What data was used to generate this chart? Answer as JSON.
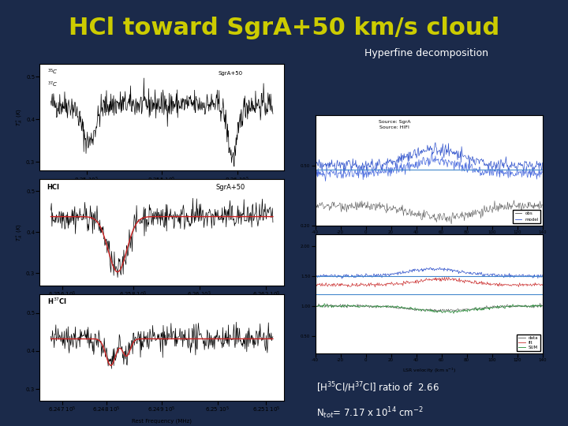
{
  "title": "HCl toward SgrA+50 km/s cloud",
  "title_color": "#cccc00",
  "background_color": "#1b2a4a",
  "hyperfine_label": "Hyperfine decomposition",
  "panel_bg": "#ffffff",
  "ratio_line1": "[H$^{35}$Cl/H$^{37}$Cl] ratio of  2.66",
  "ratio_line2": "N$_{tot}$= 7.17 x 10$^{14}$ cm$^{-2}$",
  "text_color": "#ffffff"
}
